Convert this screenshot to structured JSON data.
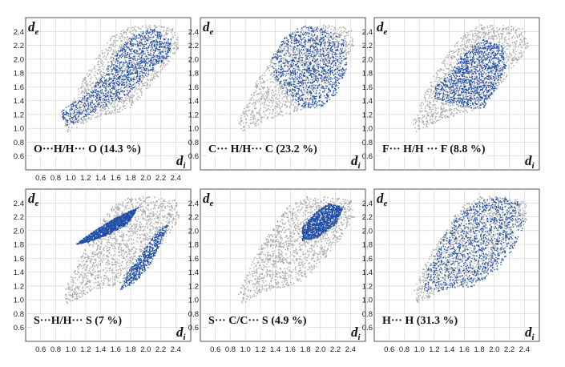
{
  "chart_data": [
    {
      "type": "scatter",
      "panel": "top-left",
      "label": "O···H/H··· O (14.3 %)",
      "xlabel": "d",
      "xlabel_sub": "i",
      "ylabel": "d",
      "ylabel_sub": "e",
      "xlim": [
        0.4,
        2.6
      ],
      "ylim": [
        0.4,
        2.6
      ],
      "x_ticks": [
        "0.6",
        "0.8",
        "1.0",
        "1.2",
        "1.4",
        "1.6",
        "1.8",
        "2.0",
        "2.2",
        "2.4"
      ],
      "y_ticks": [
        "2.4",
        "2.2",
        "2.0",
        "1.8",
        "1.6",
        "1.4",
        "1.2",
        "1.0",
        "0.8",
        "0.6"
      ],
      "series": [
        {
          "color": "#a8a8a8",
          "region": "full fingerprint"
        },
        {
          "color": "#1f4fa8",
          "region": "O···H/H···O contacts"
        }
      ]
    },
    {
      "type": "scatter",
      "panel": "top-middle",
      "label": "C··· H/H··· C (23.2 %)",
      "xlabel": "d",
      "xlabel_sub": "i",
      "ylabel": "d",
      "ylabel_sub": "e",
      "xlim": [
        0.4,
        2.6
      ],
      "ylim": [
        0.4,
        2.6
      ],
      "y_ticks": [
        "2.4",
        "2.2",
        "2.0",
        "1.8",
        "1.6",
        "1.4",
        "1.2",
        "1.0",
        "0.8",
        "0.6"
      ],
      "series": [
        {
          "color": "#a8a8a8",
          "region": "full fingerprint"
        },
        {
          "color": "#1f4fa8",
          "region": "C···H/H···C contacts"
        }
      ]
    },
    {
      "type": "scatter",
      "panel": "top-right",
      "label": "F··· H/H ··· F (8.8 %)",
      "xlabel": "d",
      "xlabel_sub": "i",
      "ylabel": "d",
      "ylabel_sub": "e",
      "xlim": [
        0.4,
        2.6
      ],
      "ylim": [
        0.4,
        2.6
      ],
      "y_ticks": [
        "2.4",
        "2.2",
        "2.0",
        "1.8",
        "1.6",
        "1.4",
        "1.2",
        "1.0",
        "0.8",
        "0.6"
      ],
      "series": [
        {
          "color": "#a8a8a8",
          "region": "full fingerprint"
        },
        {
          "color": "#1f4fa8",
          "region": "F···H/H···F contacts"
        }
      ]
    },
    {
      "type": "scatter",
      "panel": "bottom-left",
      "label": "S···H/H··· S (7 %)",
      "xlabel": "d",
      "xlabel_sub": "i",
      "ylabel": "d",
      "ylabel_sub": "e",
      "xlim": [
        0.4,
        2.6
      ],
      "ylim": [
        0.4,
        2.6
      ],
      "x_ticks": [
        "0.6",
        "0.8",
        "1.0",
        "1.2",
        "1.4",
        "1.6",
        "1.8",
        "2.0",
        "2.2",
        "2.4"
      ],
      "y_ticks": [
        "2.4",
        "2.2",
        "2.0",
        "1.8",
        "1.6",
        "1.4",
        "1.2",
        "1.0",
        "0.8",
        "0.6"
      ],
      "series": [
        {
          "color": "#a8a8a8",
          "region": "full fingerprint"
        },
        {
          "color": "#1f4fa8",
          "region": "S···H/H···S contacts"
        }
      ]
    },
    {
      "type": "scatter",
      "panel": "bottom-middle",
      "label": "S··· C/C··· S (4.9 %)",
      "xlabel": "d",
      "xlabel_sub": "i",
      "ylabel": "d",
      "ylabel_sub": "e",
      "xlim": [
        0.4,
        2.6
      ],
      "ylim": [
        0.4,
        2.6
      ],
      "x_ticks": [
        "0.6",
        "0.8",
        "1.0",
        "1.2",
        "1.4",
        "1.6",
        "1.8",
        "2.0",
        "2.2",
        "2.4"
      ],
      "y_ticks": [
        "2.4",
        "2.2",
        "2.0",
        "1.8",
        "1.6",
        "1.4",
        "1.2",
        "1.0",
        "0.8",
        "0.6"
      ],
      "series": [
        {
          "color": "#a8a8a8",
          "region": "full fingerprint"
        },
        {
          "color": "#1f4fa8",
          "region": "S···C/C···S contacts"
        }
      ]
    },
    {
      "type": "scatter",
      "panel": "bottom-right",
      "label": "H··· H (31.3 %)",
      "xlabel": "d",
      "xlabel_sub": "i",
      "ylabel": "d",
      "ylabel_sub": "e",
      "xlim": [
        0.4,
        2.6
      ],
      "ylim": [
        0.4,
        2.6
      ],
      "x_ticks": [
        "0.6",
        "0.8",
        "1.0",
        "1.2",
        "1.4",
        "1.6",
        "1.8",
        "2.0",
        "2.2",
        "2.4"
      ],
      "y_ticks": [
        "2.4",
        "2.2",
        "2.0",
        "1.8",
        "1.6",
        "1.4",
        "1.2",
        "1.0",
        "0.8",
        "0.6"
      ],
      "series": [
        {
          "color": "#a8a8a8",
          "region": "full fingerprint"
        },
        {
          "color": "#1f4fa8",
          "region": "H···H contacts"
        }
      ]
    }
  ]
}
